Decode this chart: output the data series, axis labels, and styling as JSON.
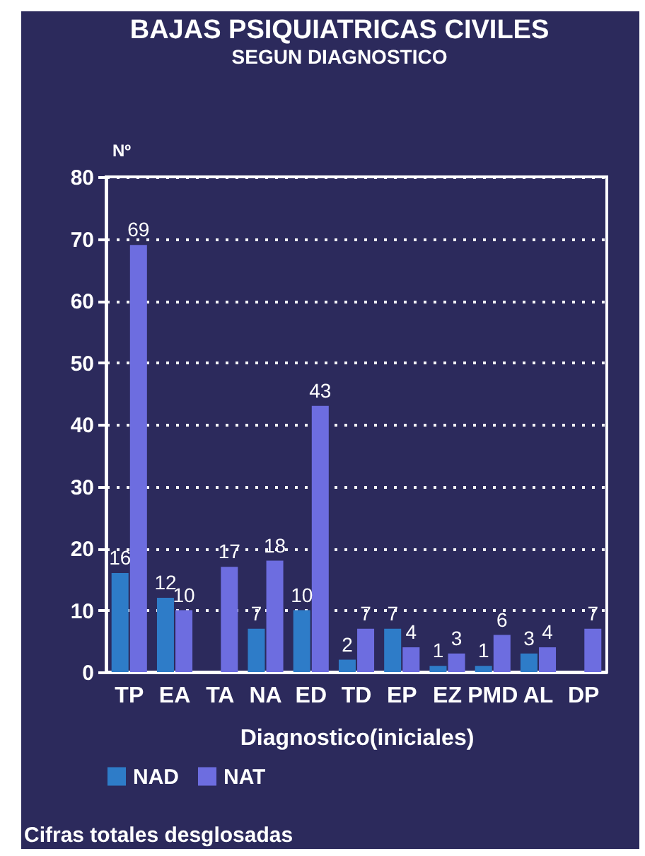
{
  "chart_data": {
    "type": "bar",
    "title": "BAJAS PSIQUIATRICAS CIVILES",
    "subtitle": "SEGUN DIAGNOSTICO",
    "xlabel": "Diagnostico(iniciales)",
    "ylabel": "Nº",
    "categories": [
      "TP",
      "EA",
      "TA",
      "NA",
      "ED",
      "TD",
      "EP",
      "EZ",
      "PMD",
      "AL",
      "DP"
    ],
    "series": [
      {
        "name": "NAD",
        "color": "#2e7cc8",
        "values": [
          16,
          12,
          null,
          7,
          10,
          2,
          7,
          1,
          1,
          3,
          null
        ]
      },
      {
        "name": "NAT",
        "color": "#6d6de0",
        "values": [
          69,
          10,
          17,
          18,
          43,
          7,
          4,
          3,
          6,
          4,
          7
        ]
      }
    ],
    "ylim": [
      0,
      80
    ],
    "yticks": [
      0,
      10,
      20,
      30,
      40,
      50,
      60,
      70,
      80
    ],
    "grid": "y",
    "legend": "bottom",
    "data_labels": true,
    "annotations": [
      "Cifras totales desglosadas"
    ]
  }
}
